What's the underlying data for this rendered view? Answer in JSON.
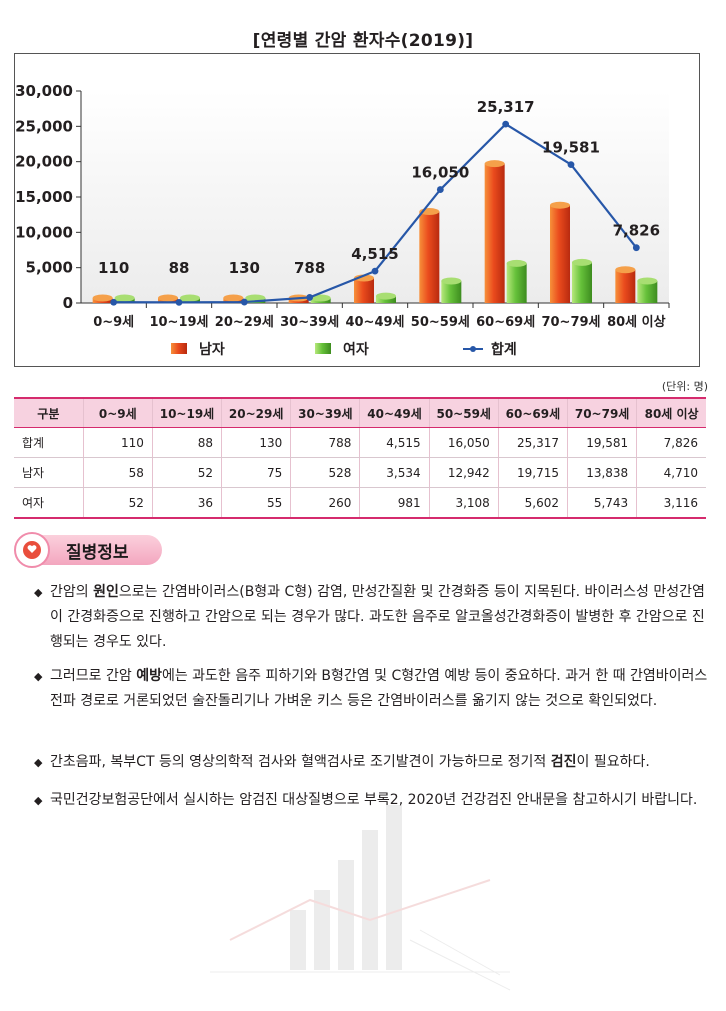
{
  "title": "[연령별 간암 환자수(2019)]",
  "unit_note": "(단위: 명)",
  "colors": {
    "male": "#e8451c",
    "female": "#6cc33b",
    "total": "#2757a8",
    "header_bg": "#f7d2e0",
    "accent": "#d52b6d"
  },
  "chart_data": {
    "type": "bar",
    "categories": [
      "0~9세",
      "10~19세",
      "20~29세",
      "30~39세",
      "40~49세",
      "50~59세",
      "60~69세",
      "70~79세",
      "80세 이상"
    ],
    "series": [
      {
        "name": "남자",
        "type": "bar",
        "values": [
          58,
          52,
          75,
          528,
          3534,
          12942,
          19715,
          13838,
          4710
        ]
      },
      {
        "name": "여자",
        "type": "bar",
        "values": [
          52,
          36,
          55,
          260,
          981,
          3108,
          5602,
          5743,
          3116
        ]
      },
      {
        "name": "합계",
        "type": "line",
        "values": [
          110,
          88,
          130,
          788,
          4515,
          16050,
          25317,
          19581,
          7826
        ]
      }
    ],
    "data_labels": [
      "110",
      "88",
      "130",
      "788",
      "4,515",
      "16,050",
      "25,317",
      "19,581",
      "7,826"
    ],
    "yticks": [
      "0",
      "5,000",
      "10,000",
      "15,000",
      "20,000",
      "25,000",
      "30,000"
    ],
    "ylim": [
      0,
      30000
    ],
    "legend_position": "bottom"
  },
  "table": {
    "headers": [
      "구분",
      "0~9세",
      "10~19세",
      "20~29세",
      "30~39세",
      "40~49세",
      "50~59세",
      "60~69세",
      "70~79세",
      "80세 이상"
    ],
    "rows": [
      {
        "label": "합계",
        "cells": [
          "110",
          "88",
          "130",
          "788",
          "4,515",
          "16,050",
          "25,317",
          "19,581",
          "7,826"
        ]
      },
      {
        "label": "남자",
        "cells": [
          "58",
          "52",
          "75",
          "528",
          "3,534",
          "12,942",
          "19,715",
          "13,838",
          "4,710"
        ]
      },
      {
        "label": "여자",
        "cells": [
          "52",
          "36",
          "55",
          "260",
          "981",
          "3,108",
          "5,602",
          "5,743",
          "3,116"
        ]
      }
    ]
  },
  "info": {
    "badge": "질병정보",
    "icon": "heart-icon",
    "bullets": [
      [
        {
          "t": "간암의 "
        },
        {
          "t": "원인",
          "b": true
        },
        {
          "t": "으로는 간염바이러스(B형과 C형) 감염, 만성간질환 및 간경화증 등이 지목된다. 바이러스성 만성간염이 간경화증으로 진행하고 간암으로 되는 경우가 많다. 과도한 음주로 알코올성간경화증이 발병한 후 간암으로 진행되는 경우도 있다."
        }
      ],
      [
        {
          "t": "그러므로 간암 "
        },
        {
          "t": "예방",
          "b": true
        },
        {
          "t": "에는 과도한 음주 피하기와 B형간염 및 C형간염 예방 등이 중요하다. 과거 한 때 간염바이러스 전파 경로로 거론되었던 술잔돌리기나 가벼운 키스 등은 간염바이러스를 옮기지 않는 것으로 확인되었다."
        }
      ],
      [
        {
          "t": "간초음파, 복부CT 등의 영상의학적 검사와 혈액검사로 조기발견이 가능하므로 정기적 "
        },
        {
          "t": "검진",
          "b": true
        },
        {
          "t": "이 필요하다."
        }
      ],
      [
        {
          "t": "국민건강보험공단에서 실시하는 암검진 대상질병으로 부록2, 2020년 건강검진 안내문을 참고하시기 바랍니다."
        }
      ]
    ]
  }
}
